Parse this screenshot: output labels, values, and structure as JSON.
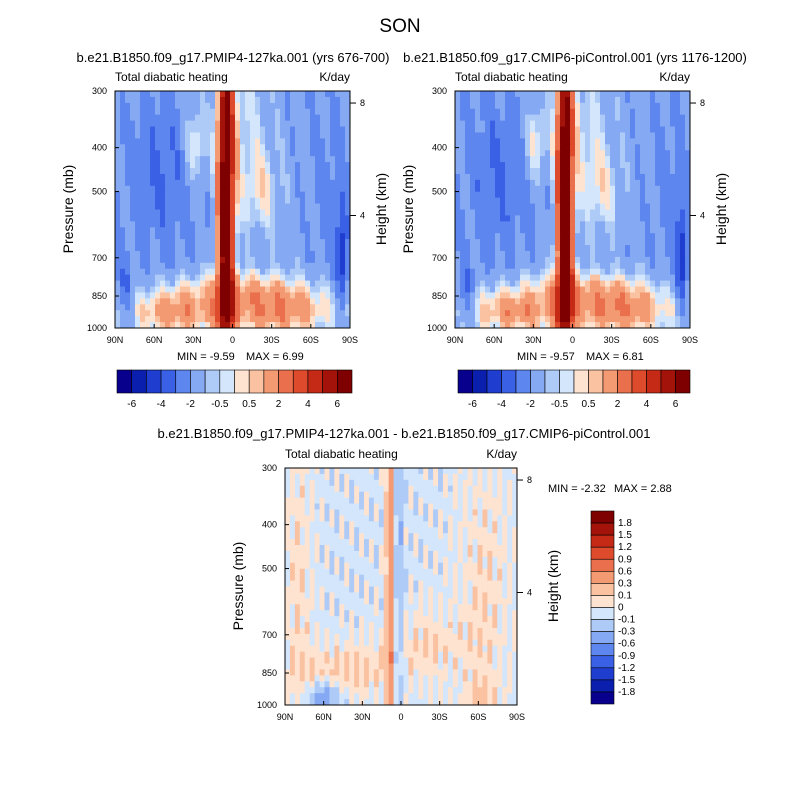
{
  "figure": {
    "season": "SON",
    "diff_title": "b.e21.B1850.f09_g17.PMIP4-127ka.001 - b.e21.B1850.f09_g17.CMIP6-piControl.001"
  },
  "chart_data": [
    {
      "type": "heatmap",
      "subtitle": "b.e21.B1850.f09_g17.PMIP4-127ka.001 (yrs 676-700)",
      "left_label": "Total diabatic heating",
      "right_label": "K/day",
      "ylabel": "Pressure (mb)",
      "ylabel_right": "Height (km)",
      "x_ticks": [
        "90N",
        "60N",
        "30N",
        "0",
        "30S",
        "60S",
        "90S"
      ],
      "x_range": [
        90,
        -90
      ],
      "y_ticks": [
        300,
        400,
        500,
        700,
        850,
        1000
      ],
      "y_range": [
        1000,
        300
      ],
      "y_scale": "log",
      "height_ticks": [
        8,
        4
      ],
      "min_text": "MIN =  -9.59",
      "max_text": "MAX =   6.99",
      "levels": [
        -6,
        -5,
        -4,
        -3,
        -2,
        -1,
        -0.5,
        0,
        0.5,
        1,
        2,
        3,
        4,
        5,
        6
      ],
      "level_labels": [
        "-6",
        "-4",
        "-2",
        "-0.5",
        "0.5",
        "2",
        "4",
        "6"
      ]
    },
    {
      "type": "heatmap",
      "subtitle": "b.e21.B1850.f09_g17.CMIP6-piControl.001 (yrs 1176-1200)",
      "left_label": "Total diabatic heating",
      "right_label": "K/day",
      "ylabel": "Pressure (mb)",
      "ylabel_right": "Height (km)",
      "x_ticks": [
        "90N",
        "60N",
        "30N",
        "0",
        "30S",
        "60S",
        "90S"
      ],
      "x_range": [
        90,
        -90
      ],
      "y_ticks": [
        300,
        400,
        500,
        700,
        850,
        1000
      ],
      "y_range": [
        1000,
        300
      ],
      "y_scale": "log",
      "height_ticks": [
        8,
        4
      ],
      "min_text": "MIN =  -9.57",
      "max_text": "MAX =   6.81",
      "levels": [
        -6,
        -5,
        -4,
        -3,
        -2,
        -1,
        -0.5,
        0,
        0.5,
        1,
        2,
        3,
        4,
        5,
        6
      ],
      "level_labels": [
        "-6",
        "-4",
        "-2",
        "-0.5",
        "0.5",
        "2",
        "4",
        "6"
      ]
    },
    {
      "type": "heatmap",
      "left_label": "Total diabatic heating",
      "right_label": "K/day",
      "ylabel": "Pressure (mb)",
      "ylabel_right": "Height (km)",
      "x_ticks": [
        "90N",
        "60N",
        "30N",
        "0",
        "30S",
        "60S",
        "90S"
      ],
      "x_range": [
        90,
        -90
      ],
      "y_ticks": [
        300,
        400,
        500,
        700,
        850,
        1000
      ],
      "y_range": [
        1000,
        300
      ],
      "y_scale": "log",
      "height_ticks": [
        8,
        4
      ],
      "min_text": "MIN =  -2.32",
      "max_text": "MAX =   2.88",
      "levels": [
        -1.8,
        -1.5,
        -1.2,
        -0.9,
        -0.6,
        -0.3,
        -0.1,
        0,
        0.1,
        0.3,
        0.6,
        0.9,
        1.2,
        1.5,
        1.8
      ],
      "level_labels": [
        "1.8",
        "1.5",
        "1.2",
        "0.9",
        "0.6",
        "0.3",
        "0.1",
        "0",
        "-0.1",
        "-0.3",
        "-0.6",
        "-0.9",
        "-1.2",
        "-1.5",
        "-1.8"
      ]
    }
  ],
  "colors": {
    "palette": [
      "#08008c",
      "#0a1fae",
      "#1f3ed0",
      "#3a60e6",
      "#5e86ef",
      "#86a9f3",
      "#aecbf7",
      "#d3e6fb",
      "#fde3d0",
      "#fbc2a2",
      "#f49a73",
      "#ea6f4c",
      "#dd4a2c",
      "#c52a17",
      "#a3130a",
      "#7e0000"
    ]
  }
}
